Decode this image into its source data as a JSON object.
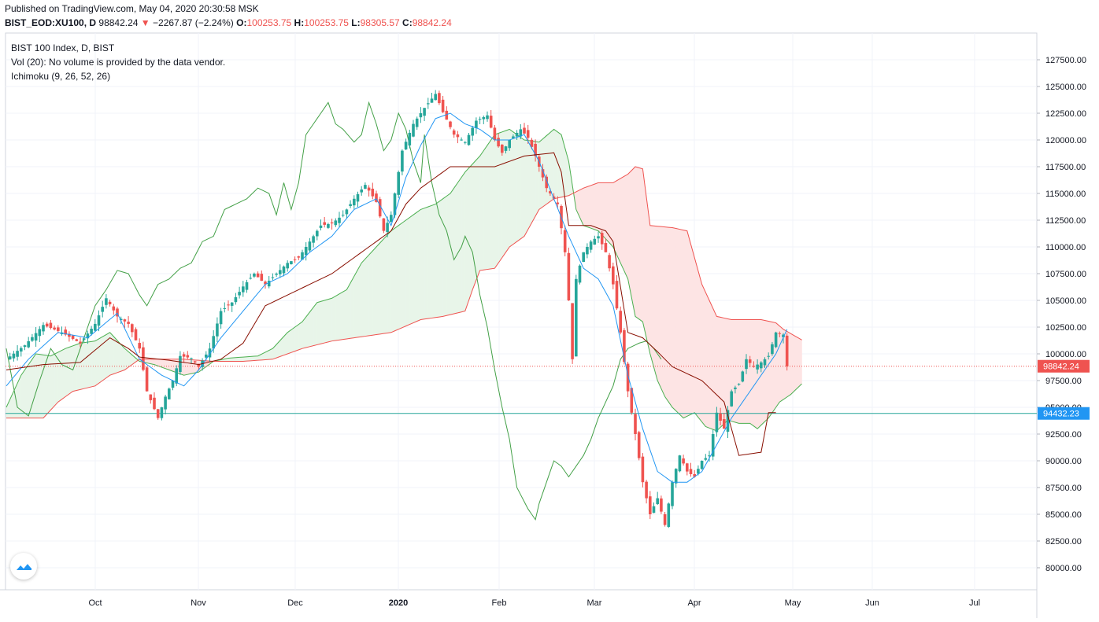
{
  "header": {
    "published": "Published on TradingView.com, May 04, 2020 20:30:58 MSK",
    "symbol": "BIST_EOD:XU100, D",
    "last": "98842.24",
    "arrow": "▼",
    "change": "−2267.87 (−2.24%)",
    "o_label": "O:",
    "o_value": "100253.75",
    "h_label": "H:",
    "h_value": "100253.75",
    "l_label": "L:",
    "l_value": "98305.57",
    "c_label": "C:",
    "c_value": "98842.24"
  },
  "legend": {
    "title": "BIST 100 Index, D, BIST",
    "volume": "Vol (20): No volume is provided by the data vendor.",
    "indicator": "Ichimoku (9, 26, 52, 26)"
  },
  "colors": {
    "up": "#26a69a",
    "down": "#ef5350",
    "tenkan": "#2196f3",
    "kijun": "#880e00",
    "chikou": "#43a047",
    "span_a": "#4caf50",
    "span_b": "#ef5350",
    "cloud_bull": "#e8f5e9",
    "cloud_bear": "#fde4e4",
    "last_label": "#ef5350",
    "level_label": "#2196f3"
  },
  "chart_data": {
    "type": "candlestick",
    "title": "BIST 100 Index, D, BIST",
    "ylim": [
      77500,
      130000
    ],
    "x_ticks": [
      "Oct",
      "Nov",
      "Dec",
      "2020",
      "Feb",
      "Mar",
      "Apr",
      "May",
      "Jun",
      "Jul"
    ],
    "y_ticks": [
      "127500.00",
      "125000.00",
      "122500.00",
      "120000.00",
      "117500.00",
      "115000.00",
      "112500.00",
      "110000.00",
      "107500.00",
      "105000.00",
      "102500.00",
      "100000.00",
      "97500.00",
      "95000.00",
      "92500.00",
      "90000.00",
      "87500.00",
      "85000.00",
      "82500.00",
      "80000.00"
    ],
    "last_price": 98842.24,
    "last_price_label": "98842.24",
    "level_line": 94432.23,
    "level_label": "94432.23",
    "price_keypoints": [
      [
        0,
        99500
      ],
      [
        5,
        100800
      ],
      [
        10,
        102700
      ],
      [
        15,
        102000
      ],
      [
        20,
        101000
      ],
      [
        24,
        102800
      ],
      [
        27,
        105200
      ],
      [
        30,
        103500
      ],
      [
        33,
        102800
      ],
      [
        36,
        100500
      ],
      [
        38,
        96500
      ],
      [
        41,
        94000
      ],
      [
        43,
        96000
      ],
      [
        45,
        97500
      ],
      [
        47,
        99800
      ],
      [
        50,
        99600
      ],
      [
        52,
        98800
      ],
      [
        55,
        100500
      ],
      [
        58,
        104000
      ],
      [
        61,
        104800
      ],
      [
        64,
        106300
      ],
      [
        67,
        107500
      ],
      [
        70,
        106500
      ],
      [
        73,
        107500
      ],
      [
        76,
        108500
      ],
      [
        79,
        109000
      ],
      [
        82,
        110500
      ],
      [
        85,
        112000
      ],
      [
        88,
        112200
      ],
      [
        91,
        113000
      ],
      [
        94,
        114500
      ],
      [
        97,
        115800
      ],
      [
        100,
        114200
      ],
      [
        102,
        111500
      ],
      [
        104,
        113000
      ],
      [
        107,
        119000
      ],
      [
        110,
        121500
      ],
      [
        113,
        123000
      ],
      [
        116,
        124300
      ],
      [
        118,
        122600
      ],
      [
        121,
        120500
      ],
      [
        124,
        119800
      ],
      [
        127,
        121800
      ],
      [
        130,
        122300
      ],
      [
        132,
        120000
      ],
      [
        134,
        118800
      ],
      [
        136,
        120000
      ],
      [
        139,
        121000
      ],
      [
        141,
        120200
      ],
      [
        143,
        118500
      ],
      [
        146,
        115500
      ],
      [
        149,
        114000
      ],
      [
        151,
        109500
      ],
      [
        152,
        105000
      ],
      [
        153,
        99500
      ],
      [
        154,
        107000
      ],
      [
        156,
        109500
      ],
      [
        158,
        110500
      ],
      [
        160,
        111000
      ],
      [
        162,
        109500
      ],
      [
        164,
        106500
      ],
      [
        166,
        102000
      ],
      [
        168,
        96500
      ],
      [
        170,
        92500
      ],
      [
        172,
        88000
      ],
      [
        174,
        85000
      ],
      [
        176,
        86500
      ],
      [
        178,
        84000
      ],
      [
        180,
        88000
      ],
      [
        182,
        90500
      ],
      [
        184,
        89000
      ],
      [
        186,
        88500
      ],
      [
        188,
        90000
      ],
      [
        190,
        90500
      ],
      [
        192,
        94500
      ],
      [
        194,
        93000
      ],
      [
        196,
        96500
      ],
      [
        198,
        97200
      ],
      [
        200,
        99500
      ],
      [
        202,
        98800
      ],
      [
        204,
        99200
      ],
      [
        206,
        99800
      ],
      [
        208,
        102000
      ],
      [
        210,
        101800
      ],
      [
        211,
        98840
      ]
    ],
    "tenkan_keypoints": [
      [
        0,
        97000
      ],
      [
        6,
        99500
      ],
      [
        14,
        102000
      ],
      [
        22,
        101500
      ],
      [
        30,
        103800
      ],
      [
        36,
        99500
      ],
      [
        42,
        98000
      ],
      [
        48,
        97000
      ],
      [
        52,
        98500
      ],
      [
        58,
        101500
      ],
      [
        64,
        104000
      ],
      [
        70,
        106500
      ],
      [
        76,
        107500
      ],
      [
        82,
        109500
      ],
      [
        88,
        111000
      ],
      [
        94,
        113500
      ],
      [
        100,
        114500
      ],
      [
        104,
        112000
      ],
      [
        108,
        116500
      ],
      [
        112,
        119500
      ],
      [
        116,
        122000
      ],
      [
        120,
        122500
      ],
      [
        124,
        121500
      ],
      [
        128,
        121000
      ],
      [
        132,
        120000
      ],
      [
        136,
        120000
      ],
      [
        140,
        120500
      ],
      [
        144,
        118000
      ],
      [
        148,
        114500
      ],
      [
        152,
        111000
      ],
      [
        156,
        108000
      ],
      [
        160,
        107000
      ],
      [
        164,
        104500
      ],
      [
        168,
        98000
      ],
      [
        172,
        93000
      ],
      [
        176,
        89000
      ],
      [
        180,
        88000
      ],
      [
        184,
        88000
      ],
      [
        188,
        89000
      ],
      [
        192,
        91500
      ],
      [
        196,
        94000
      ],
      [
        200,
        96000
      ],
      [
        204,
        98000
      ],
      [
        208,
        100000
      ],
      [
        211,
        102300
      ]
    ],
    "kijun_keypoints": [
      [
        0,
        98500
      ],
      [
        10,
        99000
      ],
      [
        20,
        99200
      ],
      [
        28,
        101500
      ],
      [
        33,
        100500
      ],
      [
        36,
        99700
      ],
      [
        44,
        99400
      ],
      [
        52,
        99000
      ],
      [
        58,
        99500
      ],
      [
        64,
        101000
      ],
      [
        70,
        104500
      ],
      [
        76,
        105500
      ],
      [
        82,
        106500
      ],
      [
        88,
        107500
      ],
      [
        94,
        109000
      ],
      [
        100,
        110500
      ],
      [
        104,
        111500
      ],
      [
        108,
        114000
      ],
      [
        112,
        115500
      ],
      [
        116,
        116500
      ],
      [
        120,
        117500
      ],
      [
        132,
        117500
      ],
      [
        140,
        118500
      ],
      [
        148,
        118800
      ],
      [
        150,
        117000
      ],
      [
        152,
        112000
      ],
      [
        158,
        112000
      ],
      [
        162,
        111500
      ],
      [
        164,
        110500
      ],
      [
        168,
        102000
      ],
      [
        172,
        101500
      ],
      [
        176,
        100200
      ],
      [
        180,
        98800
      ],
      [
        188,
        97500
      ],
      [
        194,
        95500
      ],
      [
        198,
        90500
      ],
      [
        204,
        90800
      ],
      [
        206,
        94500
      ],
      [
        208,
        94500
      ]
    ],
    "chikou_keypoints": [
      [
        0,
        100500
      ],
      [
        3,
        95000
      ],
      [
        6,
        94200
      ],
      [
        9,
        97500
      ],
      [
        12,
        100500
      ],
      [
        15,
        99000
      ],
      [
        18,
        98500
      ],
      [
        21,
        101500
      ],
      [
        24,
        104500
      ],
      [
        27,
        106000
      ],
      [
        30,
        107800
      ],
      [
        33,
        107500
      ],
      [
        36,
        105500
      ],
      [
        38,
        104500
      ],
      [
        41,
        106500
      ],
      [
        44,
        107000
      ],
      [
        47,
        108000
      ],
      [
        50,
        108500
      ],
      [
        53,
        110500
      ],
      [
        56,
        111000
      ],
      [
        59,
        113500
      ],
      [
        62,
        114000
      ],
      [
        65,
        114500
      ],
      [
        68,
        115500
      ],
      [
        71,
        115000
      ],
      [
        73,
        113000
      ],
      [
        75,
        116000
      ],
      [
        77,
        113500
      ],
      [
        79,
        116000
      ],
      [
        81,
        120500
      ],
      [
        84,
        122000
      ],
      [
        87,
        123500
      ],
      [
        89,
        121500
      ],
      [
        91,
        121000
      ],
      [
        94,
        119800
      ],
      [
        96,
        120500
      ],
      [
        98,
        123500
      ],
      [
        100,
        121500
      ],
      [
        102,
        119000
      ],
      [
        104,
        120000
      ],
      [
        106,
        122500
      ],
      [
        108,
        121000
      ],
      [
        110,
        118000
      ],
      [
        112,
        116000
      ],
      [
        113,
        120500
      ],
      [
        115,
        116000
      ],
      [
        117,
        113000
      ],
      [
        119,
        111500
      ],
      [
        121,
        108800
      ],
      [
        123,
        110000
      ],
      [
        124,
        111000
      ],
      [
        126,
        109500
      ],
      [
        128,
        105500
      ],
      [
        130,
        102500
      ],
      [
        132,
        98500
      ],
      [
        134,
        95000
      ],
      [
        136,
        92000
      ],
      [
        138,
        87500
      ],
      [
        141,
        85500
      ],
      [
        143,
        84500
      ],
      [
        144,
        86000
      ],
      [
        146,
        88000
      ],
      [
        148,
        90000
      ],
      [
        150,
        89500
      ],
      [
        152,
        88500
      ],
      [
        154,
        89500
      ],
      [
        156,
        90500
      ],
      [
        158,
        92000
      ],
      [
        160,
        94000
      ],
      [
        162,
        95500
      ],
      [
        164,
        97000
      ],
      [
        166,
        99500
      ],
      [
        168,
        100500
      ],
      [
        171,
        101000
      ],
      [
        173,
        101200
      ],
      [
        175,
        100500
      ],
      [
        177,
        99500
      ]
    ],
    "span_a_keypoints": [
      [
        0,
        95000
      ],
      [
        4,
        98000
      ],
      [
        8,
        100000
      ],
      [
        12,
        99800
      ],
      [
        16,
        100500
      ],
      [
        20,
        101000
      ],
      [
        24,
        101200
      ],
      [
        28,
        102000
      ],
      [
        32,
        100500
      ],
      [
        36,
        99300
      ],
      [
        40,
        99000
      ],
      [
        44,
        98500
      ],
      [
        48,
        98000
      ],
      [
        52,
        98300
      ],
      [
        56,
        99300
      ],
      [
        60,
        99600
      ],
      [
        64,
        99700
      ],
      [
        68,
        99800
      ],
      [
        72,
        100500
      ],
      [
        76,
        102000
      ],
      [
        80,
        103000
      ],
      [
        84,
        104800
      ],
      [
        88,
        105200
      ],
      [
        92,
        106000
      ],
      [
        96,
        108500
      ],
      [
        100,
        110000
      ],
      [
        104,
        111500
      ],
      [
        108,
        112500
      ],
      [
        112,
        113500
      ],
      [
        116,
        114000
      ],
      [
        120,
        115000
      ],
      [
        124,
        117000
      ],
      [
        128,
        118500
      ],
      [
        132,
        120500
      ],
      [
        136,
        121000
      ],
      [
        140,
        120000
      ],
      [
        144,
        119800
      ],
      [
        148,
        121000
      ],
      [
        150,
        120500
      ],
      [
        152,
        118000
      ],
      [
        154,
        113500
      ],
      [
        156,
        112000
      ],
      [
        160,
        111500
      ],
      [
        164,
        110000
      ],
      [
        168,
        107000
      ],
      [
        170,
        103500
      ],
      [
        172,
        103000
      ],
      [
        174,
        100000
      ],
      [
        176,
        97500
      ],
      [
        178,
        96000
      ],
      [
        180,
        95000
      ],
      [
        183,
        94000
      ],
      [
        186,
        94500
      ],
      [
        189,
        93200
      ],
      [
        192,
        92800
      ],
      [
        195,
        93800
      ],
      [
        198,
        93500
      ],
      [
        201,
        93500
      ],
      [
        203,
        93000
      ],
      [
        206,
        94000
      ],
      [
        209,
        95500
      ],
      [
        212,
        96200
      ],
      [
        215,
        97200
      ]
    ],
    "span_b_keypoints": [
      [
        0,
        94000
      ],
      [
        10,
        94000
      ],
      [
        14,
        95500
      ],
      [
        18,
        96500
      ],
      [
        24,
        97000
      ],
      [
        28,
        98000
      ],
      [
        32,
        98500
      ],
      [
        36,
        99500
      ],
      [
        48,
        99500
      ],
      [
        56,
        99300
      ],
      [
        64,
        99300
      ],
      [
        72,
        99500
      ],
      [
        80,
        100500
      ],
      [
        88,
        101200
      ],
      [
        96,
        101600
      ],
      [
        104,
        102000
      ],
      [
        112,
        103200
      ],
      [
        118,
        103500
      ],
      [
        124,
        104000
      ],
      [
        126,
        106000
      ],
      [
        128,
        107800
      ],
      [
        132,
        108000
      ],
      [
        136,
        110000
      ],
      [
        140,
        111000
      ],
      [
        144,
        113500
      ],
      [
        148,
        114500
      ],
      [
        152,
        114800
      ],
      [
        156,
        115500
      ],
      [
        160,
        116000
      ],
      [
        164,
        116000
      ],
      [
        168,
        116800
      ],
      [
        170,
        117500
      ],
      [
        172,
        117300
      ],
      [
        174,
        112000
      ],
      [
        180,
        111800
      ],
      [
        184,
        111500
      ],
      [
        188,
        106500
      ],
      [
        192,
        103500
      ],
      [
        196,
        103200
      ],
      [
        204,
        103200
      ],
      [
        208,
        102900
      ],
      [
        210,
        102300
      ],
      [
        214,
        101500
      ],
      [
        215,
        101300
      ]
    ],
    "legend_placement": "top-left",
    "grid": true
  }
}
